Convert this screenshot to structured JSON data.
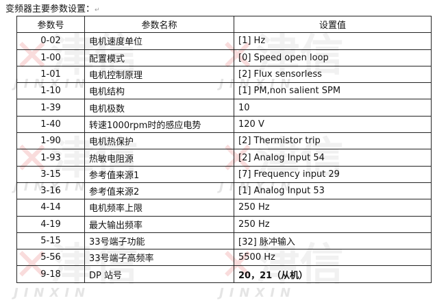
{
  "title": "变频器主要参数设置：",
  "watermark": "津信 JINXIN",
  "table": {
    "headers": [
      "参数号",
      "参数名称",
      "设置值"
    ],
    "rows": [
      {
        "id": "0-02",
        "name": "电机速度单位",
        "value": "[1] Hz"
      },
      {
        "id": "1-00",
        "name": "配置模式",
        "value": "[0] Speed open loop"
      },
      {
        "id": "1-01",
        "name": "电机控制原理",
        "value": "[2] Flux sensorless"
      },
      {
        "id": "1-10",
        "name": "电机结构",
        "value": "[1] PM,non salient SPM"
      },
      {
        "id": "1-39",
        "name": "电机极数",
        "value": "10"
      },
      {
        "id": "1-40",
        "name": "转速1000rpm时的感应电势",
        "value": "120 V"
      },
      {
        "id": "1-90",
        "name": "电机热保护",
        "value": "[2] Thermistor trip"
      },
      {
        "id": "1-93",
        "name": "热敏电阻源",
        "value": "[2] Analog Input 54"
      },
      {
        "id": "3-15",
        "name": "参考值来源1",
        "value": "[7] Frequency input 29"
      },
      {
        "id": "3-16",
        "name": "参考值来源2",
        "value": "[1] Analog Input 53"
      },
      {
        "id": "4-14",
        "name": "电机频率上限",
        "value": "250 Hz"
      },
      {
        "id": "4-19",
        "name": "最大输出频率",
        "value": "250 Hz"
      },
      {
        "id": "5-15",
        "name": "33号端子功能",
        "value": "[32]  脉冲输入"
      },
      {
        "id": "5-56",
        "name": "33号端子高频率",
        "value": "5500 Hz"
      },
      {
        "id": "9-18",
        "name": "DP  站号",
        "value": "20，21（从机）"
      }
    ]
  }
}
